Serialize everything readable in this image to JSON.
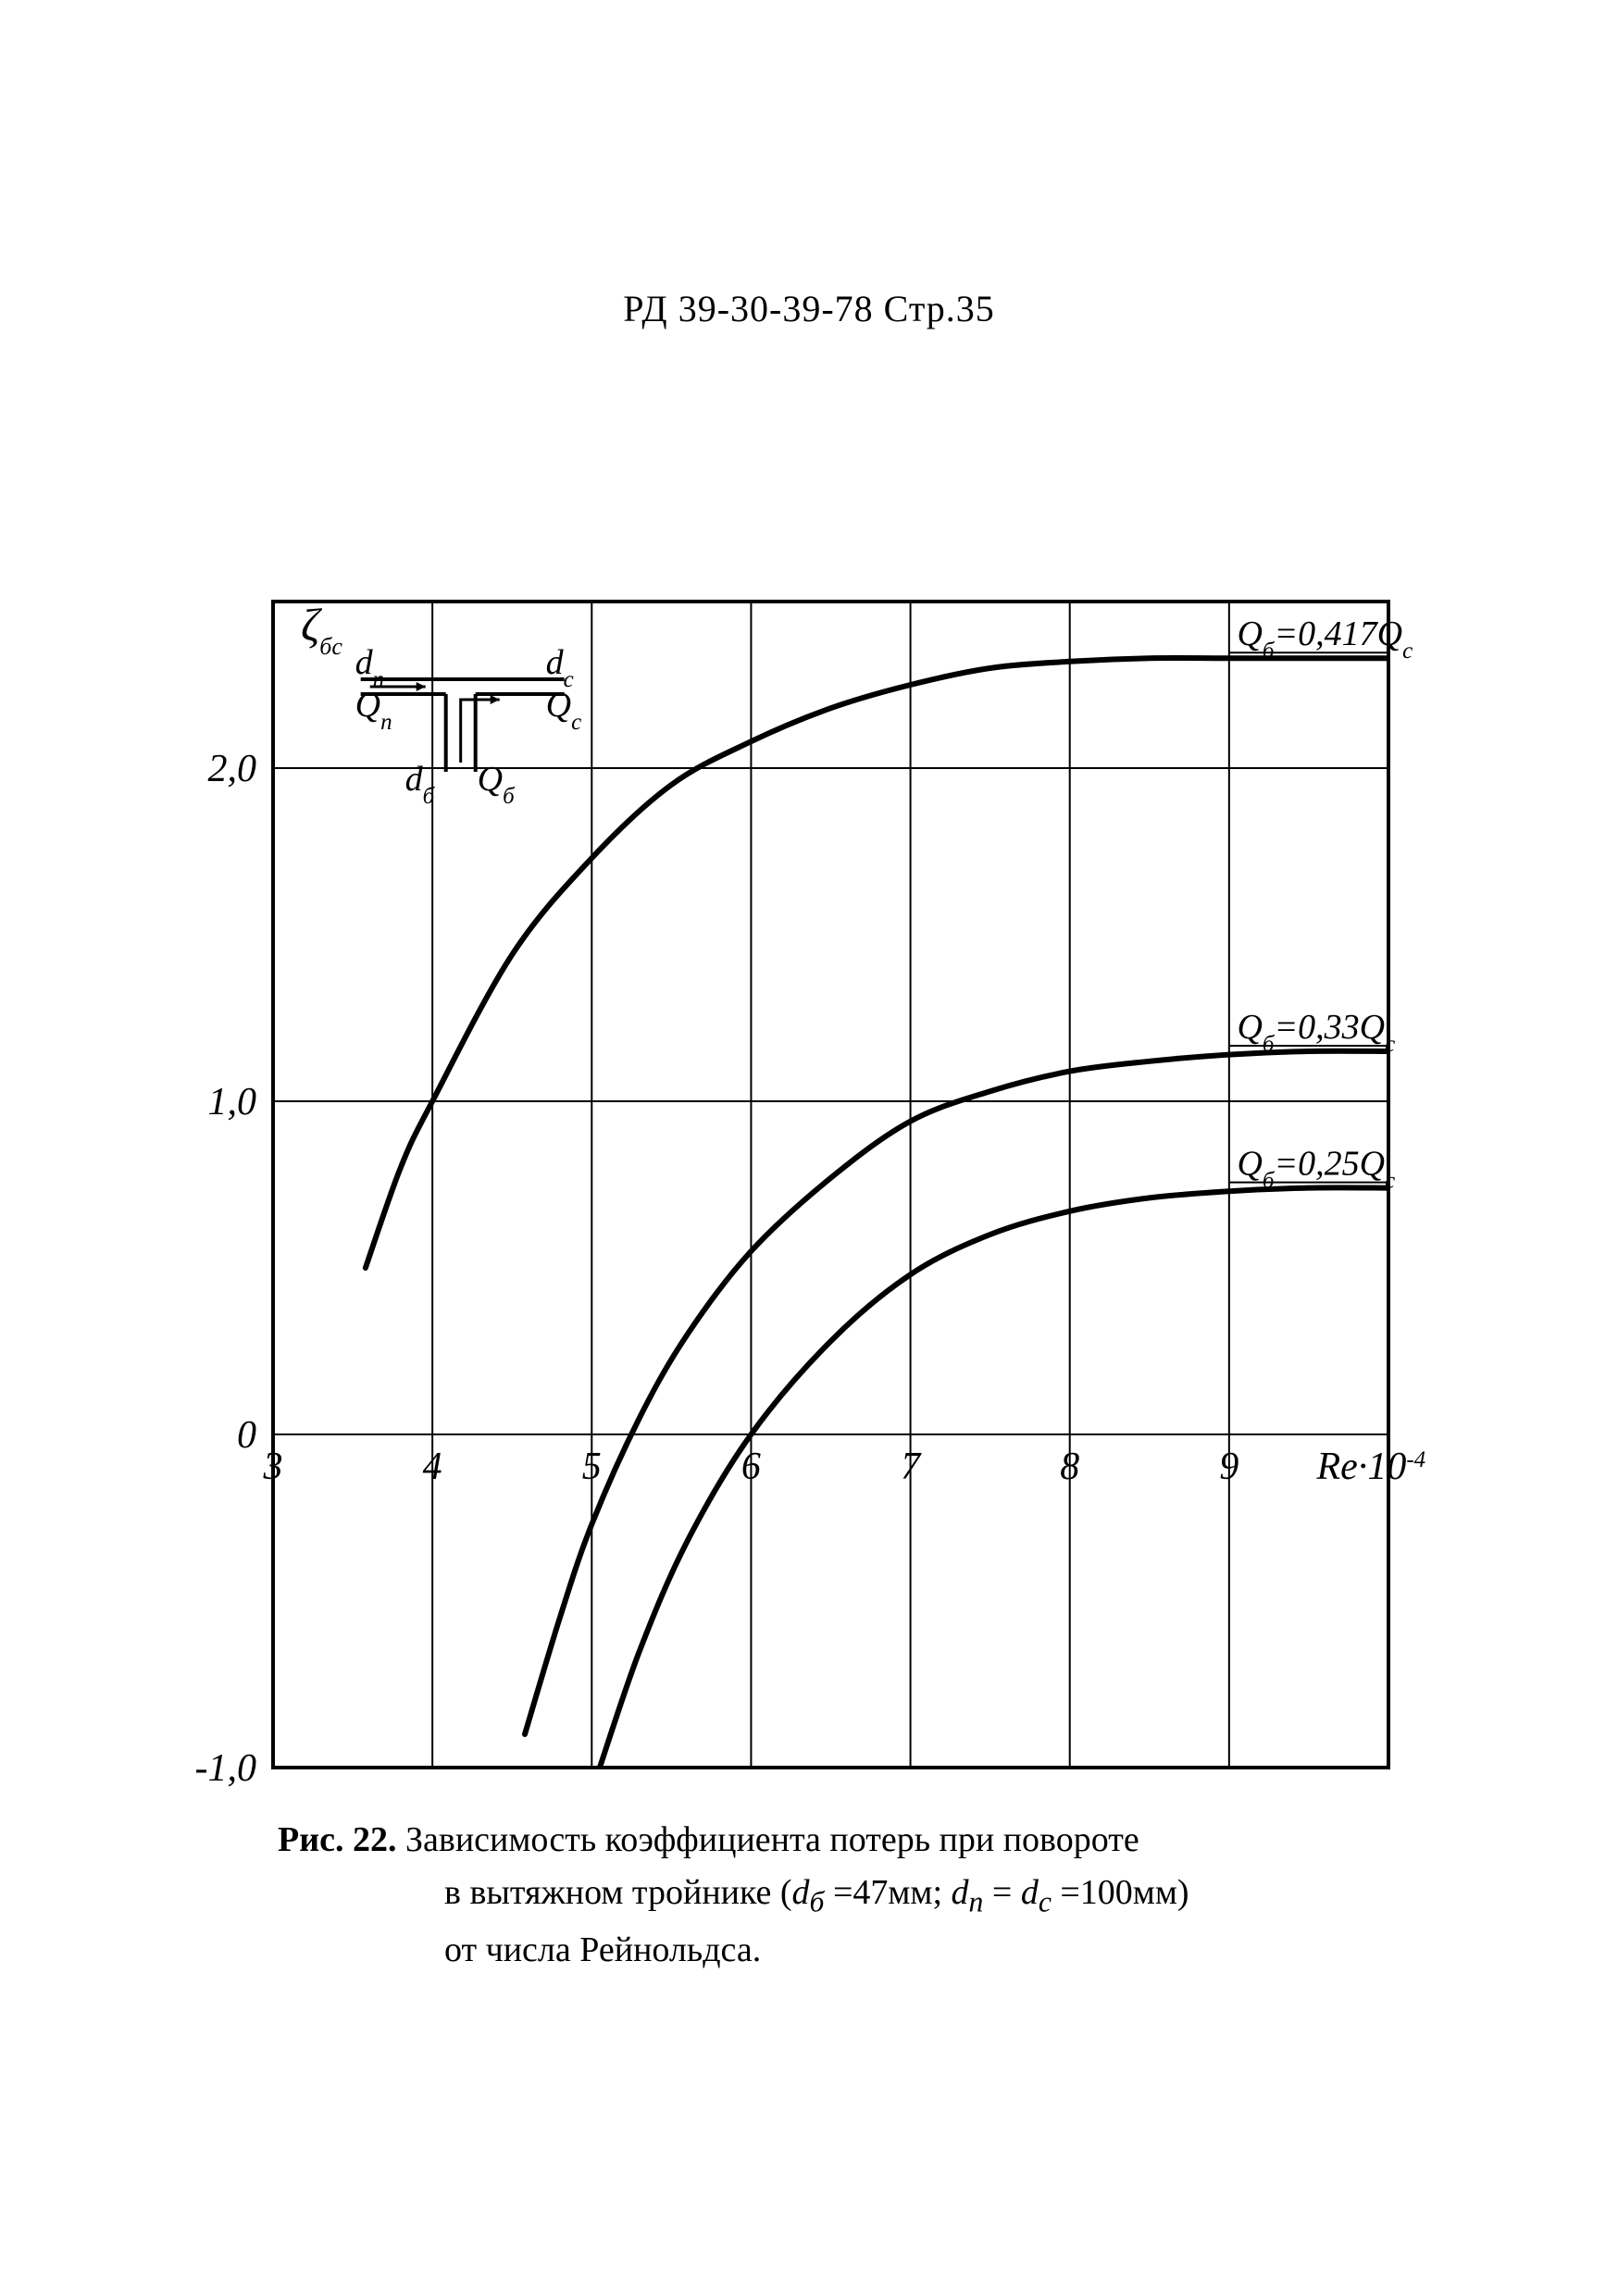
{
  "header": "РД 39-30-39-78 Стр.35",
  "chart": {
    "type": "line",
    "background_color": "#ffffff",
    "axis_color": "#000000",
    "grid_color": "#000000",
    "curve_color": "#000000",
    "axis_line_width": 4,
    "grid_line_width": 2,
    "curve_line_width": 6,
    "font_family": "Times New Roman",
    "tick_fontsize": 42,
    "label_fontsize": 44,
    "annotation_fontsize": 38,
    "x": {
      "min": 3,
      "max": 10,
      "ticks": [
        3,
        4,
        5,
        6,
        7,
        8,
        9
      ],
      "label": "Re·10⁻⁴"
    },
    "y": {
      "min": -1.0,
      "max": 2.5,
      "ticks": [
        -1.0,
        0,
        1.0,
        2.0
      ],
      "tick_labels": [
        "-1,0",
        "0",
        "1,0",
        "2,0"
      ],
      "label": "ζ_{δc}"
    },
    "series": [
      {
        "name": "Qб=0,417Qc",
        "label": "Q_б=0,417Q_c",
        "points": [
          [
            3.58,
            0.5
          ],
          [
            3.8,
            0.8
          ],
          [
            4.0,
            1.0
          ],
          [
            4.5,
            1.44
          ],
          [
            5.0,
            1.73
          ],
          [
            5.5,
            1.95
          ],
          [
            6.0,
            2.08
          ],
          [
            6.5,
            2.18
          ],
          [
            7.0,
            2.25
          ],
          [
            7.5,
            2.3
          ],
          [
            8.0,
            2.32
          ],
          [
            8.5,
            2.33
          ],
          [
            9.0,
            2.33
          ],
          [
            9.5,
            2.33
          ],
          [
            10.0,
            2.33
          ]
        ]
      },
      {
        "name": "Qб=0,33Qc",
        "label": "Q_б=0,33Q_c",
        "points": [
          [
            4.58,
            -0.9
          ],
          [
            4.8,
            -0.55
          ],
          [
            5.0,
            -0.27
          ],
          [
            5.3,
            0.05
          ],
          [
            5.6,
            0.3
          ],
          [
            6.0,
            0.55
          ],
          [
            6.5,
            0.77
          ],
          [
            7.0,
            0.94
          ],
          [
            7.5,
            1.03
          ],
          [
            8.0,
            1.09
          ],
          [
            8.5,
            1.12
          ],
          [
            9.0,
            1.14
          ],
          [
            9.5,
            1.15
          ],
          [
            10.0,
            1.15
          ]
        ]
      },
      {
        "name": "Qб=0,25Qc",
        "label": "Q_б=0,25Q_c",
        "points": [
          [
            5.05,
            -1.0
          ],
          [
            5.3,
            -0.65
          ],
          [
            5.6,
            -0.32
          ],
          [
            6.0,
            0.0
          ],
          [
            6.5,
            0.28
          ],
          [
            7.0,
            0.48
          ],
          [
            7.5,
            0.6
          ],
          [
            8.0,
            0.67
          ],
          [
            8.5,
            0.71
          ],
          [
            9.0,
            0.73
          ],
          [
            9.5,
            0.74
          ],
          [
            10.0,
            0.74
          ]
        ]
      }
    ],
    "inset": {
      "dn": "d_n",
      "qn": "Q_n",
      "db": "d_б",
      "qb": "Q_б",
      "dc": "d_c",
      "qc": "Q_c"
    }
  },
  "caption": {
    "fig_label": "Рис. 22.",
    "line1_rest": "Зависимость коэффициента потерь при повороте",
    "line2_a": "в вытяжном тройнике (",
    "line2_db": "d_б",
    "line2_eq1": " =47мм;  ",
    "line2_dn": "d_n",
    "line2_eq2": " =  ",
    "line2_dc": "d_c",
    "line2_eq3": "  =100мм)",
    "line3": "от числа Рейнольдса."
  }
}
